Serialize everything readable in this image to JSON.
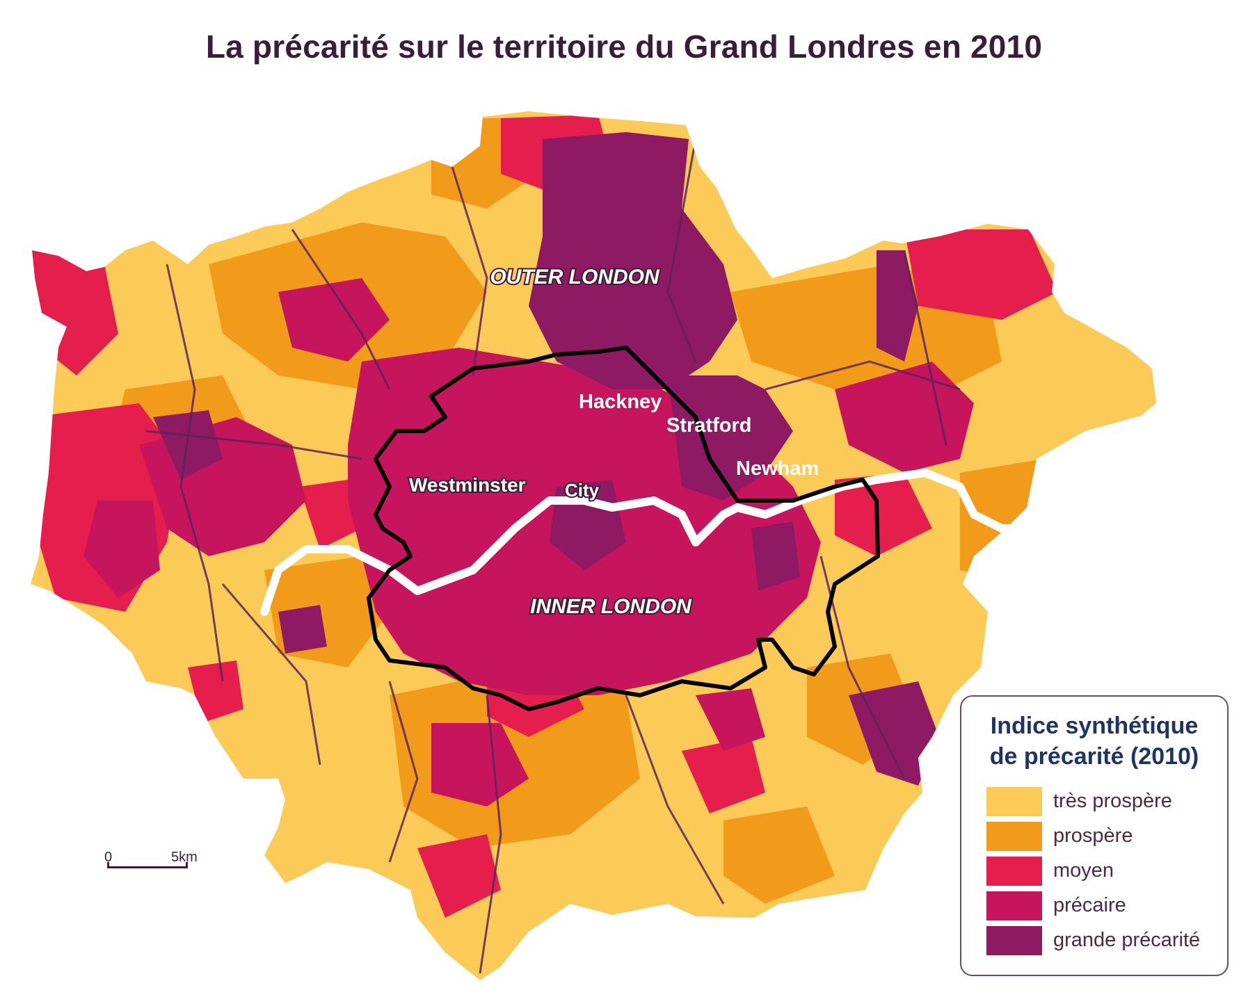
{
  "title": "La précarité sur le territoire du Grand Londres en 2010",
  "labels": {
    "outer_london": "OUTER LONDON",
    "inner_london": "INNER LONDON",
    "hackney": "Hackney",
    "stratford": "Stratford",
    "newham": "Newham",
    "westminster": "Westminster",
    "city": "City"
  },
  "legend": {
    "title_line1": "Indice synthétique",
    "title_line2": "de précarité (2010)",
    "items": [
      {
        "label": "très prospère",
        "color": "#fccb57"
      },
      {
        "label": "prospère",
        "color": "#f29a1a"
      },
      {
        "label": "moyen",
        "color": "#e51e4e"
      },
      {
        "label": "précaire",
        "color": "#c6155c"
      },
      {
        "label": "grande précarité",
        "color": "#8e1a63"
      }
    ]
  },
  "scale": {
    "zero": "0",
    "distance": "5km"
  },
  "colors": {
    "tres_prospere": "#fccb57",
    "prospere": "#f29a1a",
    "moyen": "#e51e4e",
    "precaire": "#c6155c",
    "grande_precarite": "#8e1a63",
    "inner_boundary": "#000000",
    "borough_lines": "#5a2458",
    "river": "#ffffff"
  }
}
